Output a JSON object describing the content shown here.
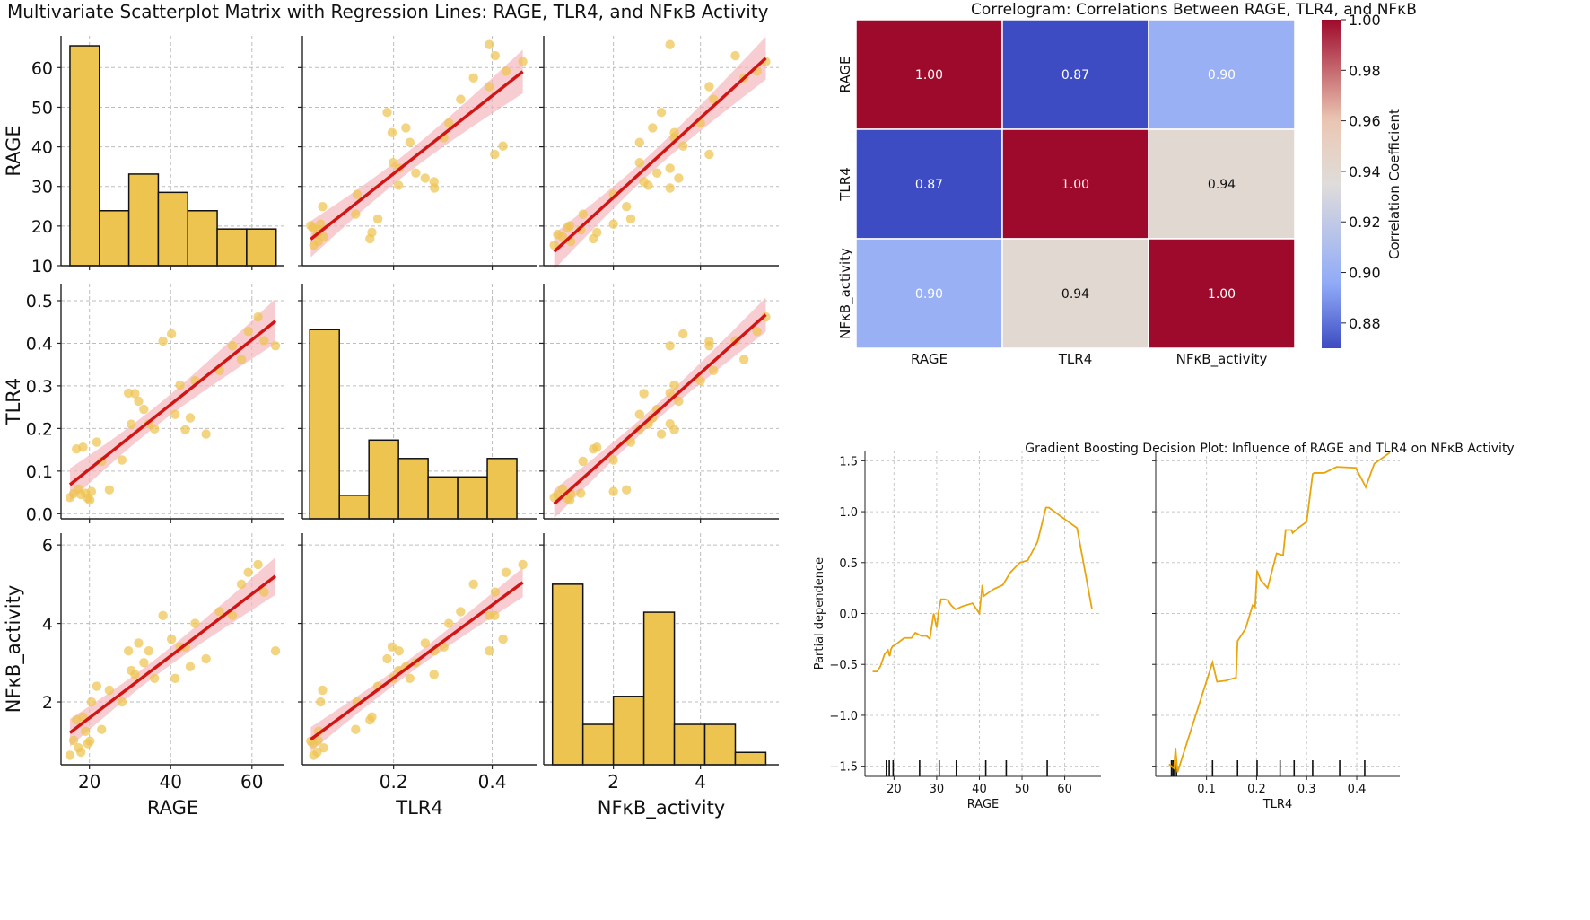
{
  "figure": {
    "matrix_title": "Multivariate Scatterplot Matrix with Regression Lines: RAGE, TLR4, and NFκB Activity",
    "correlogram_title": "Correlogram: Correlations Between RAGE, TLR4, and NFκB",
    "pd_title": "Gradient Boosting Decision Plot: Influence of RAGE and TLR4 on NFκB Activity"
  },
  "colors": {
    "bar": "#eec450",
    "point": "#eec450",
    "regression": "#d11414",
    "band": "#f4b8bd",
    "pd_line": "#e8a50c",
    "high": "#9e0a2b",
    "low": "#3d4cc2"
  },
  "chart_data": [
    {
      "type": "scatter-matrix",
      "variables": [
        "RAGE",
        "TLR4",
        "NFκB_activity"
      ],
      "axes": {
        "RAGE": {
          "lim": [
            13,
            68
          ],
          "ticks": [
            20,
            40,
            60
          ],
          "yticks": [
            10,
            20,
            30,
            40,
            50,
            60
          ]
        },
        "TLR4": {
          "lim": [
            0.015,
            0.49
          ],
          "ticks": [
            0.2,
            0.4
          ],
          "ticklabels": [
            "0.2",
            "0.4"
          ],
          "yticks": [
            0.0,
            0.1,
            0.2,
            0.3,
            0.4,
            0.5
          ],
          "yticklabels": [
            "0.0",
            "0.1",
            "0.2",
            "0.3",
            "0.4",
            "0.5"
          ]
        },
        "NFκB_activity": {
          "lim": [
            0.4,
            5.8
          ],
          "ticks": [
            2,
            4
          ],
          "yticks": [
            2,
            4,
            6
          ]
        }
      },
      "points": {
        "RAGE": [
          15.2,
          16.1,
          16.8,
          17.3,
          17.9,
          18.4,
          19.0,
          19.6,
          20.1,
          20.5,
          21.8,
          23.0,
          24.9,
          28.0,
          29.6,
          30.3,
          31.2,
          32.1,
          33.4,
          34.6,
          36.0,
          38.1,
          40.2,
          41.1,
          42.3,
          43.6,
          44.8,
          46.0,
          48.7,
          52.0,
          55.2,
          57.4,
          59.1,
          61.5,
          63.0,
          65.8
        ],
        "TLR4": [
          0.038,
          0.047,
          0.152,
          0.058,
          0.045,
          0.156,
          0.048,
          0.036,
          0.032,
          0.052,
          0.168,
          0.123,
          0.056,
          0.126,
          0.283,
          0.21,
          0.282,
          0.264,
          0.245,
          0.211,
          0.199,
          0.405,
          0.422,
          0.233,
          0.302,
          0.197,
          0.225,
          0.312,
          0.187,
          0.336,
          0.394,
          0.362,
          0.428,
          0.462,
          0.406,
          0.394
        ],
        "NFκB_activity": [
          0.64,
          1.02,
          1.54,
          0.83,
          0.72,
          1.62,
          1.25,
          0.94,
          1.0,
          2.0,
          2.4,
          1.3,
          2.3,
          2.0,
          3.3,
          2.8,
          2.7,
          3.5,
          3.0,
          3.3,
          2.6,
          4.2,
          3.6,
          2.6,
          3.4,
          3.4,
          2.9,
          4.0,
          3.1,
          4.3,
          4.2,
          5.0,
          5.3,
          5.5,
          4.8,
          3.3
        ]
      },
      "histograms": {
        "RAGE": {
          "edges": [
            15.2,
            22.45,
            29.7,
            36.95,
            44.2,
            51.45,
            58.7,
            65.95
          ],
          "counts": [
            12,
            3,
            5,
            4,
            3,
            2,
            2
          ]
        },
        "TLR4": {
          "edges": [
            0.03,
            0.09,
            0.15,
            0.21,
            0.27,
            0.33,
            0.39,
            0.45
          ],
          "counts": [
            10,
            1,
            4,
            3,
            2,
            2,
            3
          ]
        },
        "NFκB_activity": {
          "edges": [
            0.6,
            1.3,
            2.0,
            2.7,
            3.4,
            4.1,
            4.8,
            5.5
          ],
          "counts": [
            7,
            2,
            3,
            6,
            2,
            2,
            1
          ]
        }
      },
      "histogram_counts_rescaled_to": "row axis (e.g. RAGE row: 12 ≈ 65.5, 2 ≈ 21)"
    },
    {
      "type": "heatmap",
      "labels": [
        "RAGE",
        "TLR4",
        "NFκB_activity"
      ],
      "values": [
        [
          1.0,
          0.87,
          0.9
        ],
        [
          0.87,
          1.0,
          0.94
        ],
        [
          0.9,
          0.94,
          1.0
        ]
      ],
      "cell_labels": [
        [
          "1.00",
          "0.87",
          "0.90"
        ],
        [
          "0.87",
          "1.00",
          "0.94"
        ],
        [
          "0.90",
          "0.94",
          "1.00"
        ]
      ],
      "colorbar": {
        "label": "Correlation Coefficient",
        "range": [
          0.87,
          1.0
        ],
        "ticks": [
          "0.88",
          "0.90",
          "0.92",
          "0.94",
          "0.96",
          "0.98",
          "1.00"
        ]
      }
    },
    {
      "type": "line",
      "subplot": "partial-dependence-RAGE",
      "xlabel": "RAGE",
      "ylabel": "Partial dependence",
      "xlim": [
        13.2,
        68.5
      ],
      "ylim": [
        -1.6,
        1.6
      ],
      "xticks": [
        "20",
        "30",
        "40",
        "50",
        "60"
      ],
      "yticks": [
        "−1.5",
        "−1.0",
        "−0.5",
        "0.0",
        "0.5",
        "1.0",
        "1.5"
      ],
      "x": [
        15.0,
        16.0,
        16.8,
        17.3,
        17.8,
        18.2,
        18.6,
        19.0,
        19.3,
        19.7,
        20.2,
        22.4,
        24.1,
        25.0,
        26.4,
        27.6,
        28.4,
        29.3,
        30.0,
        30.5,
        31.0,
        31.8,
        32.6,
        33.4,
        34.4,
        36.0,
        38.4,
        40.0,
        40.7,
        41.0,
        42.0,
        43.4,
        45.5,
        47.2,
        49.5,
        51.3,
        53.6,
        55.6,
        56.3,
        58.9,
        62.9,
        66.4
      ],
      "y": [
        -0.57,
        -0.57,
        -0.52,
        -0.46,
        -0.4,
        -0.38,
        -0.36,
        -0.42,
        -0.35,
        -0.32,
        -0.31,
        -0.24,
        -0.24,
        -0.19,
        -0.22,
        -0.22,
        -0.25,
        0.0,
        -0.14,
        0.03,
        0.14,
        0.14,
        0.13,
        0.08,
        0.04,
        0.07,
        0.1,
        0.0,
        0.28,
        0.17,
        0.2,
        0.24,
        0.28,
        0.4,
        0.5,
        0.52,
        0.7,
        1.04,
        1.04,
        0.96,
        0.84,
        0.04
      ],
      "rug": [
        18.2,
        18.9,
        19.8,
        26.0,
        30.6,
        34.6,
        41.5,
        46.3,
        55.9
      ]
    },
    {
      "type": "line",
      "subplot": "partial-dependence-TLR4",
      "xlabel": "TLR4",
      "xlim": [
        -0.0015,
        0.486
      ],
      "ylim": [
        -1.6,
        1.6
      ],
      "xticks": [
        "0.1",
        "0.2",
        "0.3",
        "0.4"
      ],
      "x": [
        0.025,
        0.035,
        0.038,
        0.042,
        0.112,
        0.121,
        0.138,
        0.159,
        0.162,
        0.178,
        0.192,
        0.197,
        0.201,
        0.208,
        0.222,
        0.24,
        0.253,
        0.258,
        0.27,
        0.272,
        0.283,
        0.3,
        0.312,
        0.315,
        0.335,
        0.36,
        0.398,
        0.412,
        0.418,
        0.435,
        0.466
      ],
      "y": [
        -1.48,
        -1.52,
        -1.32,
        -1.56,
        -0.48,
        -0.67,
        -0.66,
        -0.63,
        -0.27,
        -0.15,
        0.08,
        0.06,
        0.42,
        0.33,
        0.25,
        0.59,
        0.57,
        0.82,
        0.82,
        0.79,
        0.84,
        0.9,
        1.37,
        1.38,
        1.38,
        1.44,
        1.43,
        1.3,
        1.24,
        1.47,
        1.58
      ],
      "rug": [
        0.03,
        0.033,
        0.036,
        0.04,
        0.112,
        0.162,
        0.201,
        0.247,
        0.275,
        0.312,
        0.366,
        0.416
      ]
    }
  ]
}
